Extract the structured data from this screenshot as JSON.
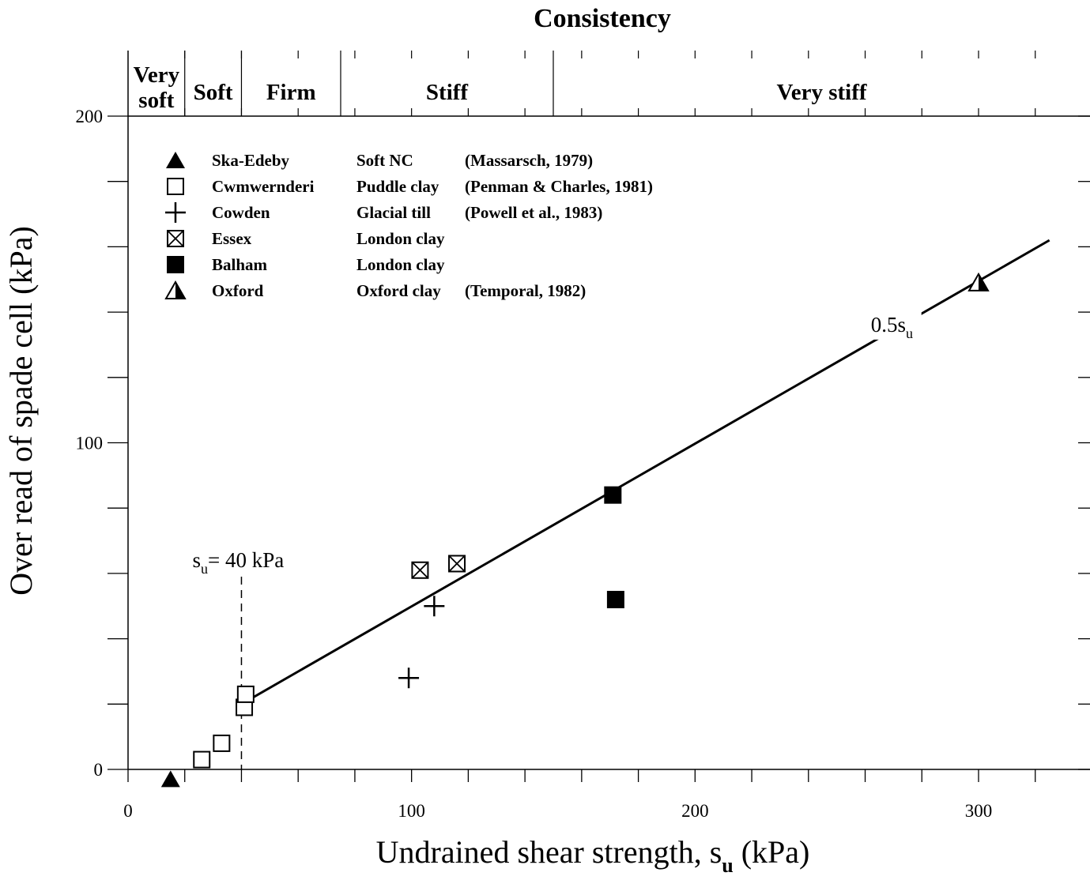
{
  "chart_data": {
    "type": "scatter",
    "title": "",
    "xlabel": "Undrained shear strength, s",
    "xlabel_sub": "u",
    "xlabel_suffix": " (kPa)",
    "ylabel": "Over read of spade cell (kPa)",
    "xlim": [
      0,
      340
    ],
    "ylim": [
      0,
      200
    ],
    "x_ticks": [
      0,
      100,
      200,
      300
    ],
    "y_ticks": [
      0,
      100,
      200
    ],
    "x_minor_step": 20,
    "y_minor_step": 20,
    "grid": false,
    "consistency": {
      "header": "Consistency",
      "bands": [
        {
          "line1": "Very",
          "line2": "soft",
          "from": 0,
          "to": 20
        },
        {
          "line1": "Soft",
          "line2": "",
          "from": 20,
          "to": 40
        },
        {
          "line1": "Firm",
          "line2": "",
          "from": 40,
          "to": 75
        },
        {
          "line1": "Stiff",
          "line2": "",
          "from": 75,
          "to": 150
        },
        {
          "line1": "Very stiff",
          "line2": "",
          "from": 150,
          "to": 340
        }
      ]
    },
    "legend_placement": "top-left",
    "series": [
      {
        "name": "Ska-Edeby",
        "material": "Soft NC",
        "reference": "(Massarsch, 1979)",
        "marker": "filled-triangle",
        "x": [
          15
        ],
        "y": [
          -3
        ]
      },
      {
        "name": "Cwmwernderi",
        "material": "Puddle clay",
        "reference": "(Penman & Charles, 1981)",
        "marker": "open-square",
        "x": [
          26,
          33,
          41,
          41.5
        ],
        "y": [
          3,
          8,
          19,
          23
        ]
      },
      {
        "name": "Cowden",
        "material": "Glacial till",
        "reference": "(Powell et al., 1983)",
        "marker": "plus",
        "x": [
          99,
          108
        ],
        "y": [
          28,
          50
        ]
      },
      {
        "name": "Essex",
        "material": "London clay",
        "reference": "",
        "marker": "crossed-square",
        "x": [
          103,
          116
        ],
        "y": [
          61,
          63
        ]
      },
      {
        "name": "Balham",
        "material": "London clay",
        "reference": "",
        "marker": "filled-square",
        "x": [
          171,
          172
        ],
        "y": [
          84,
          52
        ]
      },
      {
        "name": "Oxford",
        "material": "Oxford clay",
        "reference": "(Temporal, 1982)",
        "marker": "half-triangle",
        "x": [
          300
        ],
        "y": [
          149
        ]
      }
    ],
    "trend_line": {
      "label": "0.5s",
      "label_sub": "u",
      "x": [
        42,
        325
      ],
      "y": [
        21,
        162
      ],
      "label_at": [
        262,
        134
      ]
    },
    "reference_line": {
      "label": "s",
      "label_sub": "u",
      "label_suffix": "= 40 kPa",
      "x": 40,
      "y_top": 59
    }
  }
}
